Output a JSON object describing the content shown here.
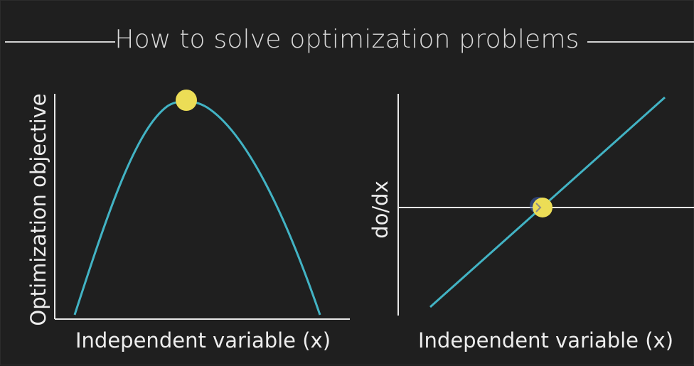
{
  "title": "How to solve optimization problems",
  "left_panel": {
    "xlabel": "Independent variable (x)",
    "ylabel": "Optimization objective"
  },
  "right_panel": {
    "xlabel": "Independent variable (x)",
    "ylabel": "do/dx"
  },
  "colors": {
    "background": "#1f1f1f",
    "curve": "#42b3c4",
    "marker": "#ecdd56",
    "axis": "#e8e8e8",
    "text": "#ededed"
  }
}
